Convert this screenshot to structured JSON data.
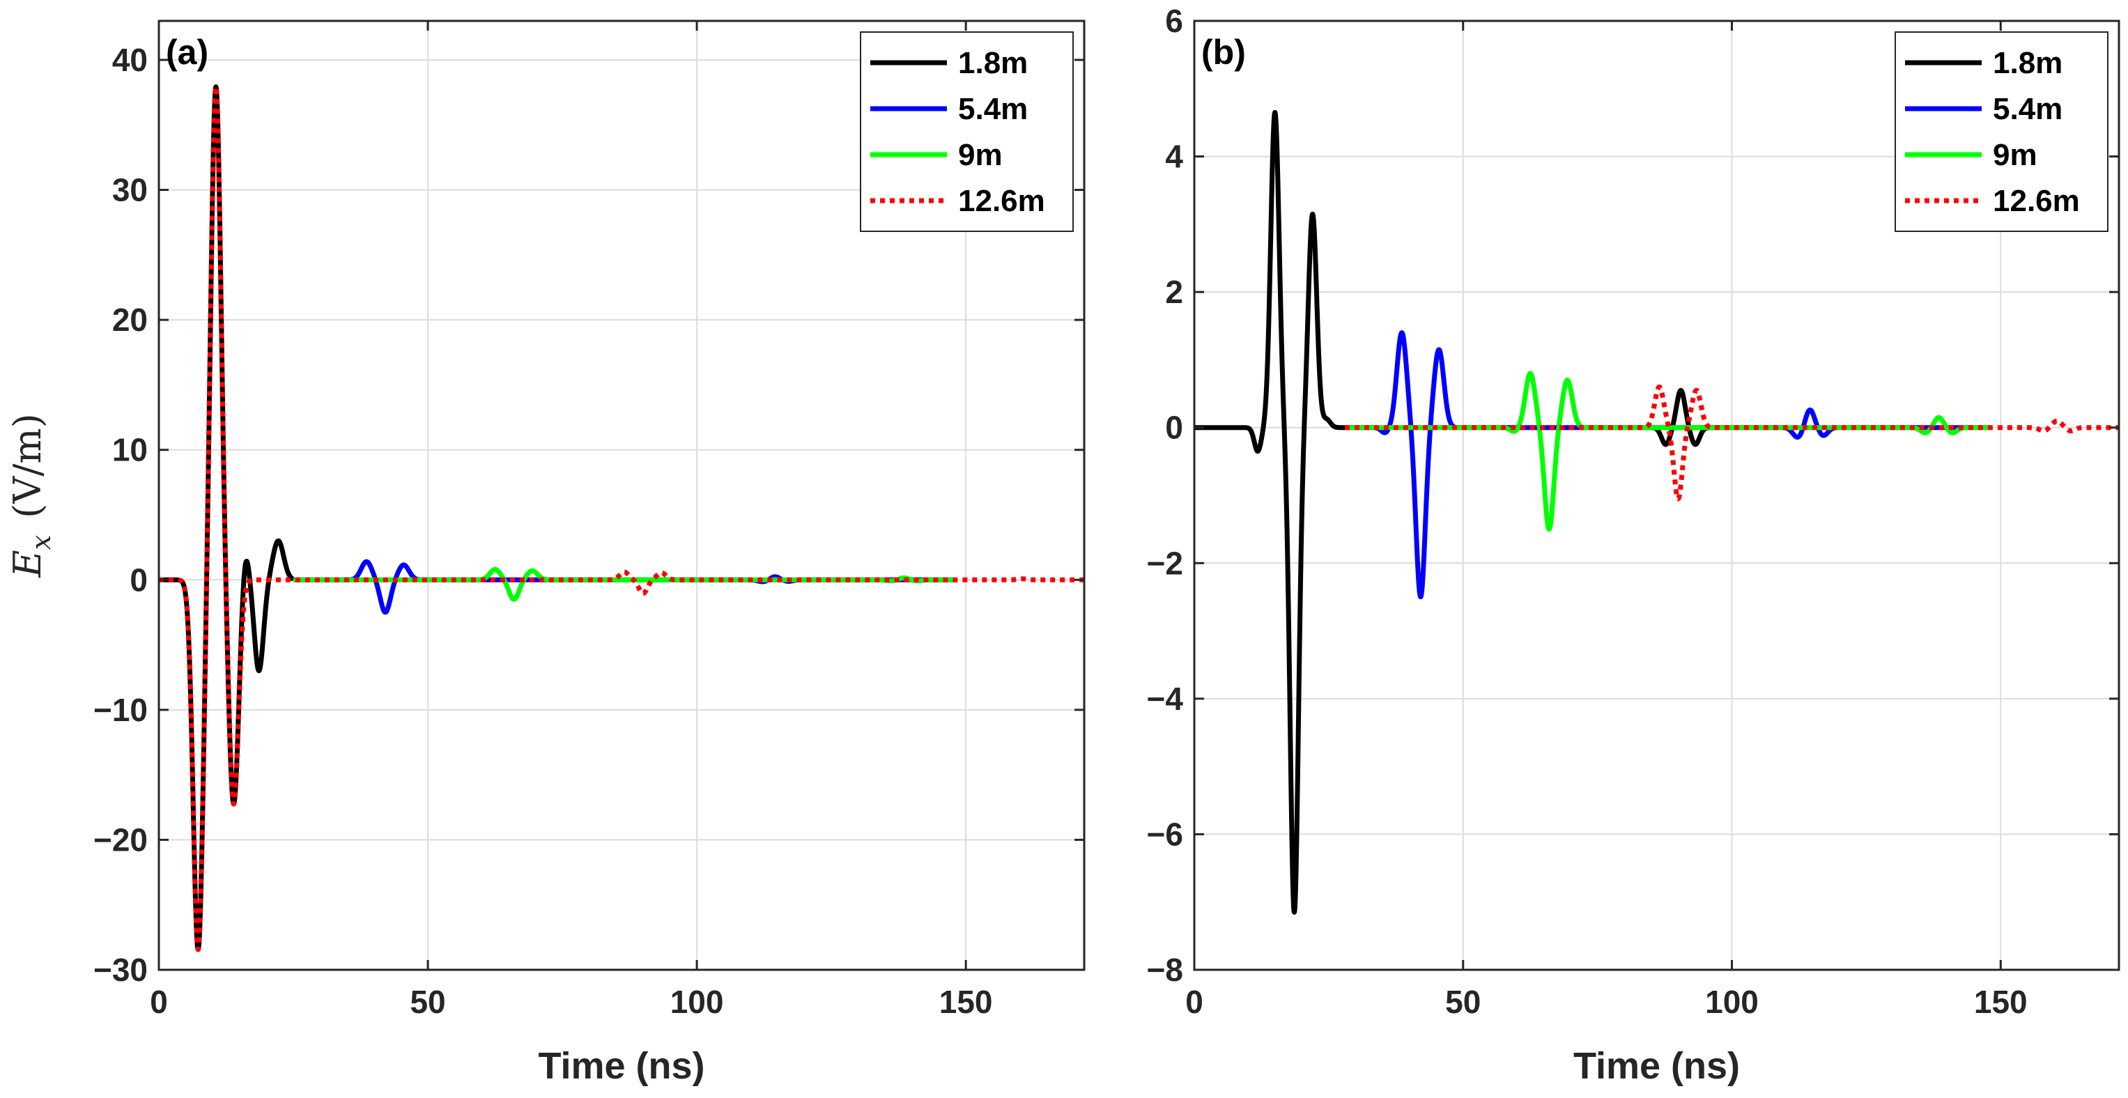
{
  "figure": {
    "series_styles": [
      {
        "name": "1.8m",
        "color": "#000000",
        "dash": "solid"
      },
      {
        "name": "5.4m",
        "color": "#0000ff",
        "dash": "solid"
      },
      {
        "name": "9m",
        "color": "#00ff00",
        "dash": "solid"
      },
      {
        "name": "12.6m",
        "color": "#ff0000",
        "dash": "dotted"
      }
    ]
  },
  "chart_data": [
    {
      "type": "line",
      "panel_label": "(a)",
      "xlabel": "Time (ns)",
      "ylabel_symbol": "E",
      "ylabel_subscript": "x",
      "ylabel_units": "(V/m)",
      "xlim": [
        0,
        172
      ],
      "ylim": [
        -30,
        43
      ],
      "xticks": [
        0,
        50,
        100,
        150
      ],
      "xtick_labels": [
        "0",
        "50",
        "100",
        "150"
      ],
      "yticks": [
        -30,
        -20,
        -10,
        0,
        10,
        20,
        30,
        40
      ],
      "ytick_labels": [
        "−30",
        "−20",
        "−10",
        "0",
        "10",
        "20",
        "30",
        "40"
      ],
      "grid": true,
      "legend": [
        "1.8m",
        "5.4m",
        "9m",
        "12.6m"
      ],
      "legend_position": "top-right",
      "series": [
        {
          "name": "1.8m",
          "x_end": 25,
          "pulses": [
            {
              "t": 7.3,
              "a": -28.5,
              "w": 1.3
            },
            {
              "t": 10.6,
              "a": 38.0,
              "w": 1.3
            },
            {
              "t": 13.9,
              "a": -17.3,
              "w": 1.3
            },
            {
              "t": 16.1,
              "a": 2.3,
              "w": 0.9
            },
            {
              "t": 18.6,
              "a": -7.0,
              "w": 1.2
            },
            {
              "t": 22.2,
              "a": 3.0,
              "w": 1.4
            }
          ]
        },
        {
          "name": "5.4m",
          "x_start": 25,
          "x_end": 148,
          "pulses": [
            {
              "t": 38.6,
              "a": 1.4,
              "w": 1.4
            },
            {
              "t": 42.1,
              "a": -2.5,
              "w": 1.3
            },
            {
              "t": 45.5,
              "a": 1.15,
              "w": 1.4
            },
            {
              "t": 112.3,
              "a": -0.15,
              "w": 1.3
            },
            {
              "t": 114.5,
              "a": 0.25,
              "w": 1.2
            },
            {
              "t": 117.0,
              "a": -0.12,
              "w": 1.2
            }
          ]
        },
        {
          "name": "9m",
          "x_start": 25,
          "x_end": 148,
          "pulses": [
            {
              "t": 62.5,
              "a": 0.8,
              "w": 1.4
            },
            {
              "t": 66.0,
              "a": -1.5,
              "w": 1.3
            },
            {
              "t": 69.4,
              "a": 0.7,
              "w": 1.4
            },
            {
              "t": 136.0,
              "a": -0.08,
              "w": 1.2
            },
            {
              "t": 138.5,
              "a": 0.15,
              "w": 1.2
            },
            {
              "t": 141.0,
              "a": -0.08,
              "w": 1.2
            }
          ]
        },
        {
          "name": "12.6m",
          "x_start": 0,
          "x_end": 172,
          "pulses": [
            {
              "t": 7.3,
              "a": -28.5,
              "w": 1.3
            },
            {
              "t": 10.6,
              "a": 38.0,
              "w": 1.3
            },
            {
              "t": 13.9,
              "a": -17.3,
              "w": 1.3
            },
            {
              "t": 86.5,
              "a": 0.6,
              "w": 1.2
            },
            {
              "t": 90.0,
              "a": -1.05,
              "w": 1.1
            },
            {
              "t": 93.4,
              "a": 0.55,
              "w": 1.2
            },
            {
              "t": 160.5,
              "a": 0.08,
              "w": 1.2
            }
          ]
        }
      ]
    },
    {
      "type": "line",
      "panel_label": "(b)",
      "xlabel": "Time (ns)",
      "ylabel_symbol": "",
      "ylabel_subscript": "",
      "ylabel_units": "",
      "xlim": [
        0,
        172
      ],
      "ylim": [
        -8,
        6
      ],
      "xticks": [
        0,
        50,
        100,
        150
      ],
      "xtick_labels": [
        "0",
        "50",
        "100",
        "150"
      ],
      "yticks": [
        -8,
        -6,
        -4,
        -2,
        0,
        2,
        4,
        6
      ],
      "ytick_labels": [
        "−8",
        "−6",
        "−4",
        "−2",
        "0",
        "2",
        "4",
        "6"
      ],
      "grid": true,
      "legend": [
        "1.8m",
        "5.4m",
        "9m",
        "12.6m"
      ],
      "legend_position": "top-right",
      "series": [
        {
          "name": "1.8m",
          "x_start": 0,
          "x_end": 28,
          "pulses": [
            {
              "t": 11.8,
              "a": -0.35,
              "w": 0.9
            },
            {
              "t": 15.0,
              "a": 4.65,
              "w": 1.1
            },
            {
              "t": 18.6,
              "a": -7.15,
              "w": 1.1
            },
            {
              "t": 22.0,
              "a": 3.15,
              "w": 1.1
            },
            {
              "t": 24.6,
              "a": 0.12,
              "w": 1.0
            }
          ]
        },
        {
          "name": "1.8m",
          "x_start": 85,
          "x_end": 97,
          "pulses": [
            {
              "t": 87.7,
              "a": -0.25,
              "w": 1.1
            },
            {
              "t": 90.5,
              "a": 0.55,
              "w": 1.1
            },
            {
              "t": 93.2,
              "a": -0.25,
              "w": 1.1
            }
          ]
        },
        {
          "name": "5.4m",
          "x_start": 28,
          "x_end": 148,
          "pulses": [
            {
              "t": 35.5,
              "a": -0.08,
              "w": 1.0
            },
            {
              "t": 38.6,
              "a": 1.4,
              "w": 1.3
            },
            {
              "t": 42.1,
              "a": -2.5,
              "w": 1.2
            },
            {
              "t": 45.5,
              "a": 1.15,
              "w": 1.3
            },
            {
              "t": 112.3,
              "a": -0.15,
              "w": 1.3
            },
            {
              "t": 114.5,
              "a": 0.27,
              "w": 1.2
            },
            {
              "t": 117.0,
              "a": -0.12,
              "w": 1.2
            }
          ]
        },
        {
          "name": "9m",
          "x_start": 28,
          "x_end": 148,
          "pulses": [
            {
              "t": 59.5,
              "a": -0.06,
              "w": 1.0
            },
            {
              "t": 62.5,
              "a": 0.8,
              "w": 1.3
            },
            {
              "t": 66.0,
              "a": -1.5,
              "w": 1.2
            },
            {
              "t": 69.4,
              "a": 0.7,
              "w": 1.3
            },
            {
              "t": 136.0,
              "a": -0.08,
              "w": 1.2
            },
            {
              "t": 138.5,
              "a": 0.15,
              "w": 1.2
            },
            {
              "t": 141.0,
              "a": -0.08,
              "w": 1.2
            }
          ]
        },
        {
          "name": "12.6m",
          "x_start": 28,
          "x_end": 172,
          "pulses": [
            {
              "t": 86.5,
              "a": 0.6,
              "w": 1.2
            },
            {
              "t": 90.0,
              "a": -1.05,
              "w": 1.1
            },
            {
              "t": 93.4,
              "a": 0.55,
              "w": 1.2
            },
            {
              "t": 158.0,
              "a": -0.05,
              "w": 1.1
            },
            {
              "t": 160.5,
              "a": 0.1,
              "w": 1.2
            },
            {
              "t": 163.0,
              "a": -0.05,
              "w": 1.1
            }
          ]
        }
      ]
    }
  ]
}
